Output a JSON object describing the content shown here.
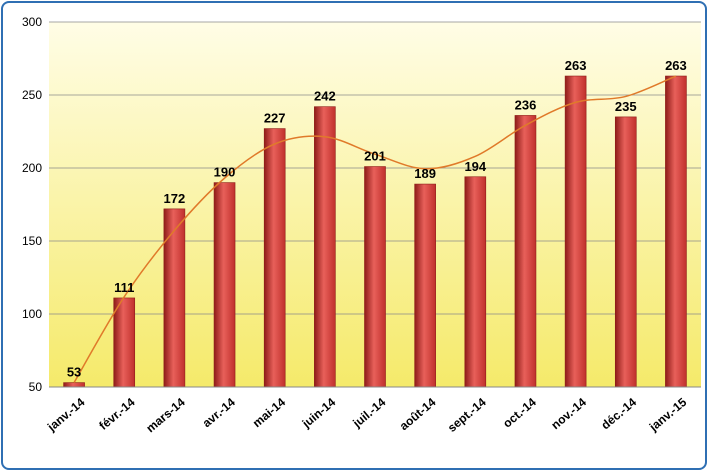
{
  "chart_data": {
    "type": "bar",
    "title": "",
    "xlabel": "",
    "ylabel": "",
    "categories": [
      "janv.-14",
      "févr.-14",
      "mars-14",
      "avr.-14",
      "mai-14",
      "juin-14",
      "juil.-14",
      "août-14",
      "sept.-14",
      "oct.-14",
      "nov.-14",
      "déc.-14",
      "janv.-15"
    ],
    "values": [
      53,
      111,
      172,
      190,
      227,
      242,
      201,
      189,
      194,
      236,
      263,
      235,
      263
    ],
    "ylim": [
      50,
      300
    ],
    "yticks": [
      50,
      100,
      150,
      200,
      250,
      300
    ],
    "grid": "horizontal",
    "legend": "none",
    "trendline": "smoothed moving trend",
    "colors": {
      "bar": "#c0302c",
      "bar_light": "#e8605a",
      "bar_dark": "#8e1c18",
      "trend": "#e07a2a",
      "plot_top": "#fffde6",
      "plot_bottom": "#f5ea6a",
      "frame": "#2f6fb3"
    }
  }
}
